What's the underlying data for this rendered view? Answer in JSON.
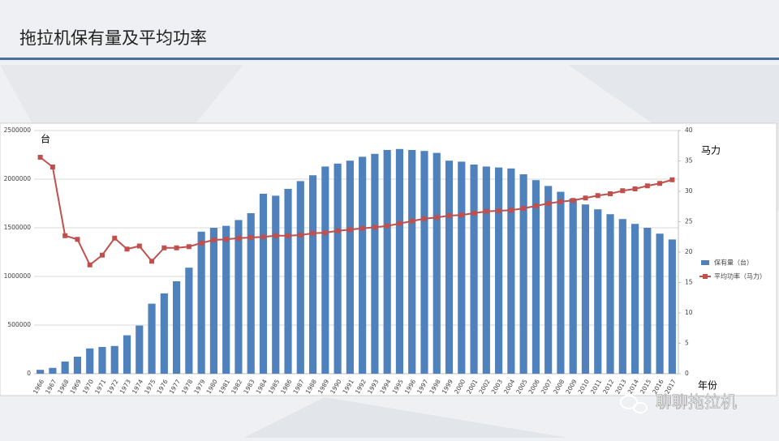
{
  "chart_data": {
    "type": "bar",
    "title": "拖拉机保有量及平均功率",
    "categories": [
      "1966",
      "1967",
      "1968",
      "1969",
      "1970",
      "1971",
      "1972",
      "1973",
      "1974",
      "1975",
      "1976",
      "1977",
      "1978",
      "1979",
      "1980",
      "1981",
      "1982",
      "1983",
      "1984",
      "1985",
      "1986",
      "1987",
      "1988",
      "1989",
      "1990",
      "1991",
      "1992",
      "1993",
      "1994",
      "1995",
      "1996",
      "1997",
      "1998",
      "1999",
      "2000",
      "2001",
      "2002",
      "2003",
      "2004",
      "2005",
      "2006",
      "2007",
      "2008",
      "2009",
      "2010",
      "2011",
      "2012",
      "2013",
      "2014",
      "2015",
      "2016",
      "2017"
    ],
    "series": [
      {
        "name": "保有量（台）",
        "type": "bar",
        "color": "#4f81bd",
        "values": [
          40000,
          60000,
          125000,
          175000,
          260000,
          275000,
          285000,
          395000,
          495000,
          720000,
          825000,
          950000,
          1090000,
          1460000,
          1500000,
          1520000,
          1580000,
          1650000,
          1850000,
          1830000,
          1900000,
          1980000,
          2040000,
          2130000,
          2160000,
          2190000,
          2230000,
          2260000,
          2300000,
          2310000,
          2300000,
          2290000,
          2270000,
          2190000,
          2180000,
          2150000,
          2130000,
          2120000,
          2110000,
          2050000,
          1990000,
          1930000,
          1870000,
          1800000,
          1740000,
          1690000,
          1640000,
          1590000,
          1540000,
          1500000,
          1440000,
          1380000
        ]
      },
      {
        "name": "平均功率（马力）",
        "type": "line",
        "axis": "y2",
        "color": "#c0504d",
        "values": [
          35.6,
          34,
          22.7,
          22.1,
          17.9,
          19.5,
          22.3,
          20.5,
          21,
          18.5,
          20.7,
          20.7,
          20.9,
          21.5,
          22,
          22.1,
          22.3,
          22.4,
          22.5,
          22.7,
          22.7,
          22.8,
          23.1,
          23.2,
          23.5,
          23.7,
          23.9,
          24.1,
          24.3,
          24.7,
          25.1,
          25.5,
          25.7,
          26,
          26.1,
          26.4,
          26.7,
          26.8,
          26.9,
          27.2,
          27.6,
          28,
          28.3,
          28.5,
          28.9,
          29.3,
          29.6,
          30.1,
          30.4,
          30.9,
          31.3,
          31.9
        ]
      }
    ],
    "ylim": [
      0,
      2500000
    ],
    "yticks": [
      0,
      500000,
      1000000,
      1500000,
      2000000,
      2500000
    ],
    "y2lim": [
      0,
      40
    ],
    "y2ticks": [
      0,
      5,
      10,
      15,
      20,
      25,
      30,
      35,
      40
    ],
    "y_unit": "台",
    "y2_unit": "马力",
    "x_label": "年份",
    "grid": true,
    "legend": "right"
  },
  "watermark": "聊聊拖拉机"
}
